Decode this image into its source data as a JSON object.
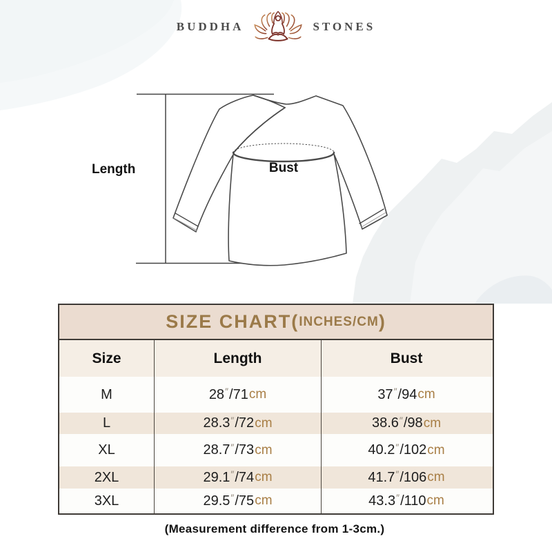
{
  "brand": {
    "name_left": "BUDDHA",
    "name_right": "STONES",
    "logo_icon": "lotus-meditation-icon"
  },
  "diagram": {
    "length_label": "Length",
    "bust_label": "Bust"
  },
  "size_chart": {
    "title_main": "SIZE CHART(",
    "title_sub": "INCHES/CM",
    "title_close": ")",
    "columns": [
      "Size",
      "Length",
      "Bust"
    ],
    "units": {
      "inch_mark": "″",
      "separator": "/",
      "cm_label": "cm"
    },
    "rows": [
      {
        "size": "M",
        "length_in": "28",
        "length_cm": "71",
        "bust_in": "37",
        "bust_cm": "94"
      },
      {
        "size": "L",
        "length_in": "28.3",
        "length_cm": "72",
        "bust_in": "38.6",
        "bust_cm": "98"
      },
      {
        "size": "XL",
        "length_in": "28.7",
        "length_cm": "73",
        "bust_in": "40.2",
        "bust_cm": "102"
      },
      {
        "size": "2XL",
        "length_in": "29.1",
        "length_cm": "74",
        "bust_in": "41.7",
        "bust_cm": "106"
      },
      {
        "size": "3XL",
        "length_in": "29.5",
        "length_cm": "75",
        "bust_in": "43.3",
        "bust_cm": "110"
      }
    ]
  },
  "footer": {
    "note": "(Measurement difference from 1-3cm.)"
  },
  "colors": {
    "accent_title": "#9b7a49",
    "title_bg": "#ebdcd0",
    "header_bg": "#f5eee5",
    "stripe_bg": "#f0e6da",
    "table_border": "#3e3a36",
    "cm_text": "#a87e45",
    "inch_mark": "#8f8679",
    "logo_text": "#4b4b4b",
    "lotus_dark": "#7b2f27",
    "lotus_light": "#b4653f",
    "garment_stroke": "#4a4a4a"
  }
}
